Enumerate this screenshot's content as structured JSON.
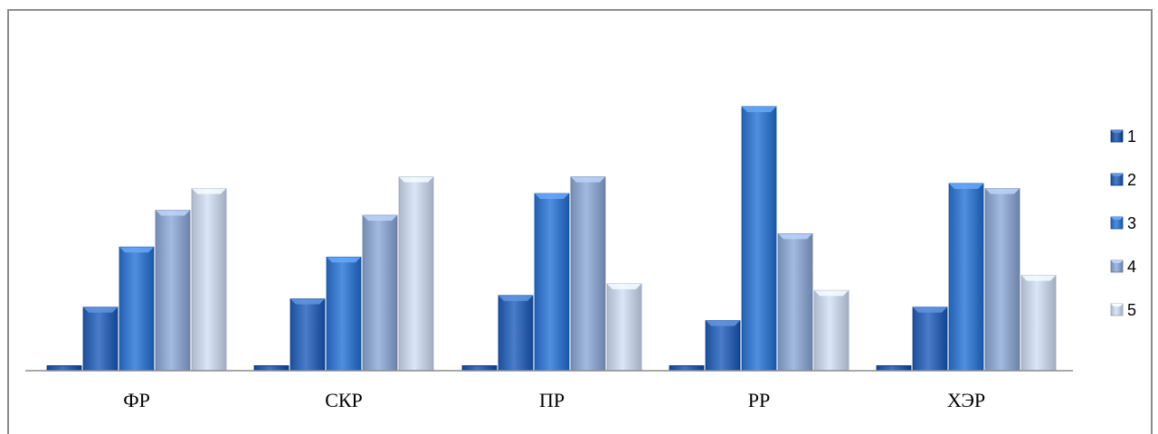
{
  "chart_data": {
    "type": "bar",
    "categories": [
      "ФР",
      "СКР",
      "ПР",
      "РР",
      "ХЭР"
    ],
    "series": [
      {
        "name": "1",
        "values": [
          0.3,
          0.3,
          0.3,
          0.3,
          0.3
        ],
        "color": "#2e5ea8"
      },
      {
        "name": "2",
        "values": [
          3.8,
          4.3,
          4.5,
          3.0,
          3.8
        ],
        "color": "#3568b5"
      },
      {
        "name": "3",
        "values": [
          7.4,
          6.8,
          10.6,
          15.8,
          11.2
        ],
        "color": "#3c7acb"
      },
      {
        "name": "4",
        "values": [
          9.6,
          9.3,
          11.6,
          8.2,
          10.9
        ],
        "color": "#8fa6cc"
      },
      {
        "name": "5",
        "values": [
          10.9,
          11.6,
          5.2,
          4.8,
          5.7
        ],
        "color": "#c7d1e4"
      }
    ],
    "ylim": [
      0,
      16.5
    ],
    "grid": false,
    "legend_position": "right",
    "title": "",
    "xlabel": "",
    "ylabel": ""
  }
}
